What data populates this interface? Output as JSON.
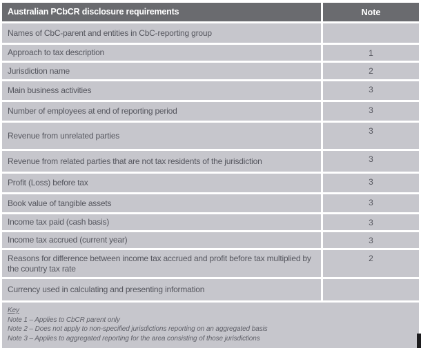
{
  "table": {
    "header": {
      "requirement": "Australian PCbCR disclosure requirements",
      "note": "Note"
    },
    "rows": [
      {
        "requirement": "Names of CbC-parent and entities in CbC-reporting group",
        "note": ""
      },
      {
        "requirement": "Approach to tax description",
        "note": "1"
      },
      {
        "requirement": "Jurisdiction name",
        "note": "2"
      },
      {
        "requirement": "Main business activities",
        "note": "3"
      },
      {
        "requirement": "Number of employees at end of reporting period",
        "note": "3"
      },
      {
        "requirement": "Revenue from unrelated parties",
        "note": "3"
      },
      {
        "requirement": "Revenue from related parties that are not tax residents of the jurisdiction",
        "note": "3"
      },
      {
        "requirement": "Profit (Loss) before tax",
        "note": "3"
      },
      {
        "requirement": "Book value of tangible assets",
        "note": "3"
      },
      {
        "requirement": "Income tax paid (cash basis)",
        "note": "3"
      },
      {
        "requirement": "Income tax accrued (current year)",
        "note": "3"
      },
      {
        "requirement": "Reasons for difference between income tax accrued and profit before tax multiplied by the country tax rate",
        "note": "2"
      },
      {
        "requirement": "Currency used in calculating and presenting information",
        "note": ""
      }
    ]
  },
  "key": {
    "title": "Key",
    "notes": [
      "Note 1 – Applies to CbCR parent only",
      "Note 2 – Does not apply to non-specified jurisdictions reporting on an aggregated basis",
      "Note 3 – Applies to aggregated reporting for the area consisting of those jurisdictions"
    ]
  },
  "colors": {
    "header_bg": "#6a6b6f",
    "header_text": "#ffffff",
    "row_bg": "#c6c6cc",
    "row_text": "#55565e",
    "key_text": "#5f6068",
    "corner_block": "#1c1c1e"
  }
}
